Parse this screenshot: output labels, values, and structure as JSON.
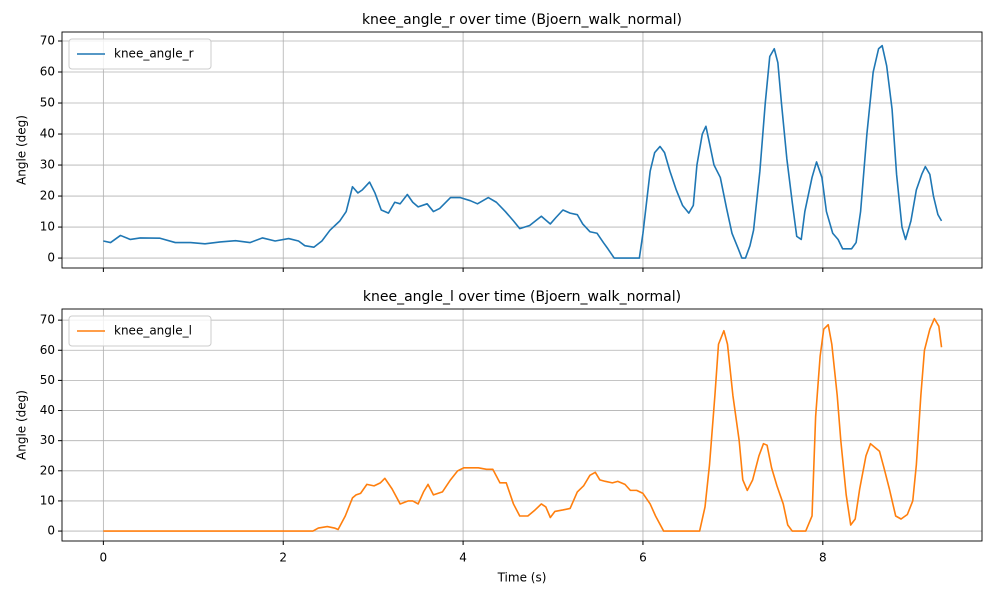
{
  "chart_data": [
    {
      "type": "line",
      "title": "knee_angle_r over time (Bjoern_walk_normal)",
      "y_label": "Angle (deg)",
      "x": [
        0,
        0.08,
        0.19,
        0.3,
        0.41,
        0.63,
        0.8,
        0.97,
        1.13,
        1.3,
        1.47,
        1.63,
        1.77,
        1.91,
        2.06,
        2.17,
        2.24,
        2.34,
        2.43,
        2.52,
        2.63,
        2.7,
        2.77,
        2.83,
        2.88,
        2.96,
        3.02,
        3.09,
        3.17,
        3.24,
        3.3,
        3.38,
        3.44,
        3.5,
        3.6,
        3.67,
        3.74,
        3.86,
        3.97,
        4.08,
        4.16,
        4.28,
        4.37,
        4.47,
        4.56,
        4.63,
        4.74,
        4.87,
        4.97,
        5.03,
        5.11,
        5.19,
        5.27,
        5.33,
        5.41,
        5.49,
        5.56,
        5.61,
        5.68,
        5.74,
        5.96,
        6.0,
        6.08,
        6.13,
        6.19,
        6.24,
        6.3,
        6.37,
        6.44,
        6.51,
        6.56,
        6.6,
        6.66,
        6.7,
        6.74,
        6.79,
        6.86,
        6.93,
        6.99,
        7.06,
        7.1,
        7.14,
        7.19,
        7.23,
        7.3,
        7.36,
        7.41,
        7.46,
        7.5,
        7.54,
        7.6,
        7.66,
        7.71,
        7.76,
        7.8,
        7.88,
        7.93,
        7.99,
        8.04,
        8.11,
        8.17,
        8.22,
        8.28,
        8.32,
        8.37,
        8.42,
        8.49,
        8.56,
        8.62,
        8.66,
        8.71,
        8.77,
        8.82,
        8.88,
        8.92,
        8.98,
        9.04,
        9.1,
        9.14,
        9.19,
        9.23,
        9.28,
        9.32
      ],
      "series": [
        {
          "name": "knee_angle_r",
          "color": "#1f77b4",
          "values": [
            5.5,
            5,
            7.3,
            6,
            6.5,
            6.4,
            5,
            5,
            4.6,
            5.2,
            5.6,
            5,
            6.5,
            5.5,
            6.3,
            5.5,
            4,
            3.5,
            5.5,
            9,
            12,
            15,
            23,
            21,
            22,
            24.5,
            21,
            15.5,
            14.5,
            18,
            17.5,
            20.5,
            18,
            16.5,
            17.5,
            15,
            16,
            19.5,
            19.5,
            18.5,
            17.5,
            19.5,
            18,
            15,
            12,
            9.5,
            10.5,
            13.5,
            11,
            13,
            15.5,
            14.5,
            14,
            11,
            8.5,
            8,
            5,
            3,
            0,
            0,
            0,
            8,
            28,
            34,
            36,
            34,
            28,
            22,
            17,
            14.5,
            17,
            30,
            40,
            42.5,
            37,
            30,
            26,
            16,
            8,
            3,
            0,
            0,
            4,
            9,
            28,
            50,
            65,
            67.5,
            63,
            50,
            32,
            18,
            7,
            6,
            15,
            26,
            31,
            26,
            15,
            8,
            6,
            3,
            3,
            3,
            5,
            15,
            40,
            60,
            67.5,
            68.5,
            62,
            48,
            27,
            10,
            6,
            12,
            22,
            27,
            29.5,
            27,
            20,
            14,
            12
          ]
        }
      ],
      "xlim": [
        -0.46,
        9.77
      ],
      "xticks": [
        0,
        2,
        4,
        6,
        8
      ],
      "ylim": [
        -3.2,
        72.9
      ],
      "yticks": [
        0,
        10,
        20,
        30,
        40,
        50,
        60,
        70
      ],
      "grid": true,
      "legend": "upper-left"
    },
    {
      "type": "line",
      "title": "knee_angle_l over time (Bjoern_walk_normal)",
      "x_label": "Time (s)",
      "y_label": "Angle (deg)",
      "x": [
        0,
        2.33,
        2.39,
        2.49,
        2.57,
        2.61,
        2.69,
        2.77,
        2.81,
        2.86,
        2.93,
        3.01,
        3.08,
        3.13,
        3.21,
        3.3,
        3.39,
        3.44,
        3.5,
        3.56,
        3.61,
        3.67,
        3.77,
        3.86,
        3.94,
        4.01,
        4.08,
        4.17,
        4.26,
        4.33,
        4.41,
        4.48,
        4.56,
        4.63,
        4.72,
        4.8,
        4.87,
        4.92,
        4.97,
        5.02,
        5.11,
        5.19,
        5.27,
        5.34,
        5.41,
        5.47,
        5.52,
        5.58,
        5.66,
        5.72,
        5.8,
        5.86,
        5.93,
        6.0,
        6.08,
        6.14,
        6.23,
        6.63,
        6.69,
        6.74,
        6.8,
        6.84,
        6.9,
        6.94,
        7.0,
        7.07,
        7.11,
        7.16,
        7.22,
        7.29,
        7.34,
        7.38,
        7.43,
        7.49,
        7.56,
        7.61,
        7.66,
        7.81,
        7.88,
        7.92,
        7.97,
        8.01,
        8.06,
        8.1,
        8.16,
        8.2,
        8.26,
        8.31,
        8.36,
        8.41,
        8.48,
        8.53,
        8.59,
        8.63,
        8.68,
        8.74,
        8.81,
        8.87,
        8.94,
        9.0,
        9.04,
        9.09,
        9.13,
        9.19,
        9.24,
        9.29,
        9.32
      ],
      "series": [
        {
          "name": "knee_angle_l",
          "color": "#ff7f0e",
          "values": [
            0,
            0,
            1,
            1.5,
            1,
            0.5,
            5,
            11,
            12,
            12.5,
            15.5,
            15,
            16,
            17.5,
            14,
            9,
            10,
            10,
            9,
            13,
            15.5,
            12,
            13,
            17,
            20,
            21,
            21,
            21,
            20.5,
            20.5,
            16,
            16,
            9,
            5,
            5,
            7,
            9,
            8,
            4.5,
            6.5,
            7,
            7.5,
            13,
            15,
            18.5,
            19.5,
            17,
            16.5,
            16,
            16.5,
            15.5,
            13.5,
            13.5,
            12.5,
            9,
            5,
            0,
            0,
            8,
            22,
            45,
            62,
            66.5,
            62,
            45,
            30,
            17,
            13.5,
            17,
            25,
            29,
            28.5,
            21,
            15,
            9,
            2,
            0,
            0,
            5,
            38,
            58,
            67,
            68.5,
            62,
            45,
            30,
            12,
            2,
            4,
            14,
            25,
            29,
            27.5,
            26.5,
            21,
            14,
            5,
            4,
            5.5,
            10,
            22,
            45,
            60,
            67,
            70.5,
            68,
            61
          ]
        }
      ],
      "xlim": [
        -0.46,
        9.77
      ],
      "xticks": [
        0,
        2,
        4,
        6,
        8
      ],
      "ylim": [
        -3.3,
        73.7
      ],
      "yticks": [
        0,
        10,
        20,
        30,
        40,
        50,
        60,
        70
      ],
      "grid": true,
      "legend": "upper-left"
    }
  ]
}
